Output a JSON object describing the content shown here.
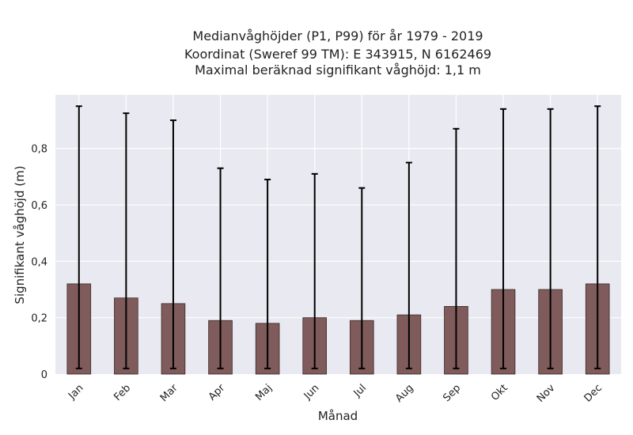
{
  "chart_data": {
    "type": "bar",
    "title_lines": [
      "Medianvåghöjder (P1, P99) för år 1979 - 2019",
      "Koordinat (Sweref 99 TM): E 343915, N 6162469",
      "Maximal beräknad signifikant våghöjd: 1,1 m"
    ],
    "xlabel": "Månad",
    "ylabel": "Signifikant våghöjd (m)",
    "categories": [
      "Jan",
      "Feb",
      "Mar",
      "Apr",
      "Maj",
      "Jun",
      "Jul",
      "Aug",
      "Sep",
      "Okt",
      "Nov",
      "Dec"
    ],
    "series": [
      {
        "values": [
          0.32,
          0.27,
          0.25,
          0.19,
          0.18,
          0.2,
          0.19,
          0.21,
          0.24,
          0.3,
          0.3,
          0.32
        ],
        "p1": [
          0.02,
          0.02,
          0.02,
          0.02,
          0.02,
          0.02,
          0.02,
          0.02,
          0.02,
          0.02,
          0.02,
          0.02
        ],
        "p99": [
          0.95,
          0.925,
          0.9,
          0.73,
          0.69,
          0.71,
          0.66,
          0.75,
          0.87,
          0.94,
          0.94,
          0.95
        ]
      }
    ],
    "ylim": [
      0,
      0.99
    ],
    "yticks": [
      0,
      0.2,
      0.4,
      0.6,
      0.8
    ],
    "ytick_labels": [
      "0",
      "0,2",
      "0,4",
      "0,6",
      "0,8"
    ],
    "grid": true,
    "bar_color": "#7f5b5b",
    "bar_edge_color": "#3a2a2a",
    "error_bar_color": "#000000",
    "plot_bg_color": "#e9e9f1",
    "grid_color": "#ffffff"
  }
}
